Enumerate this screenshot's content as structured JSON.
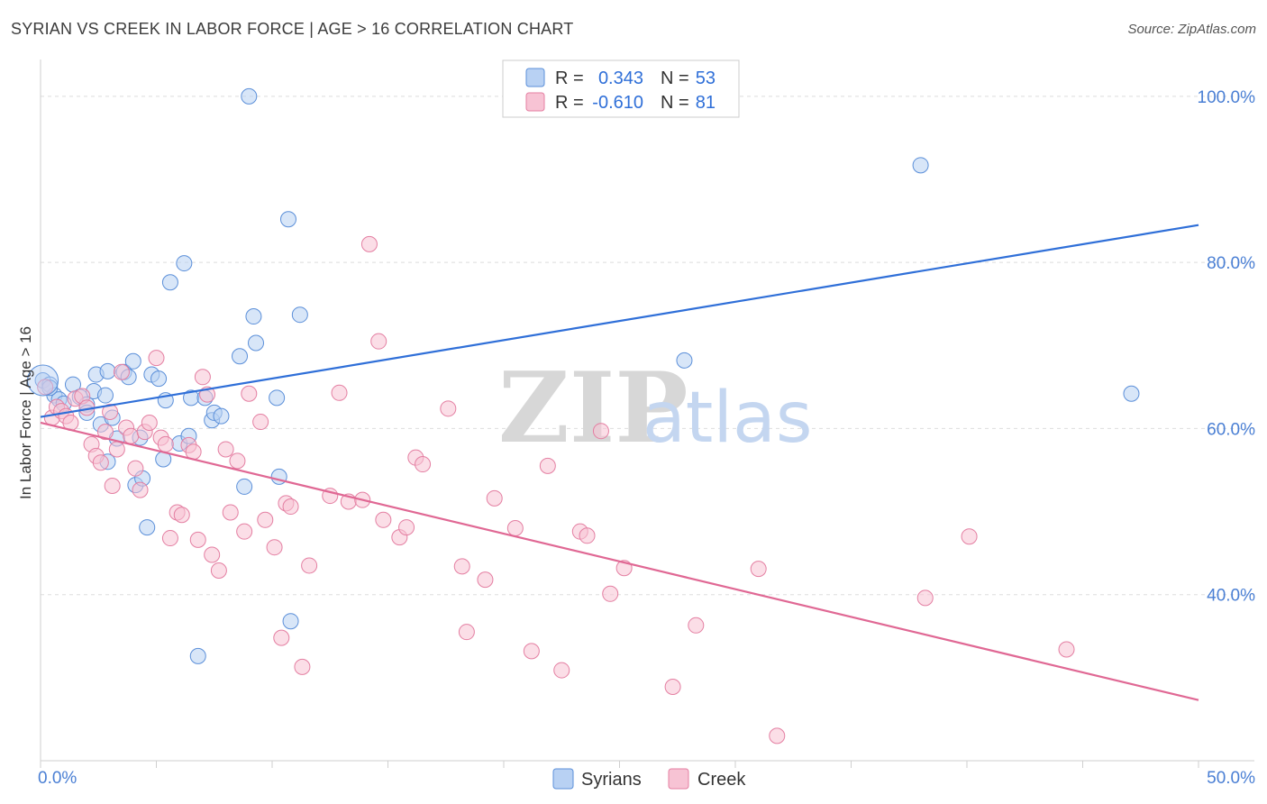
{
  "header": {
    "title": "SYRIAN VS CREEK IN LABOR FORCE | AGE > 16 CORRELATION CHART",
    "source": "Source: ZipAtlas.com"
  },
  "watermark": {
    "zip": "ZIP",
    "atlas": "atlas"
  },
  "colors": {
    "syrians_fill": "#b8d1f3",
    "syrians_stroke": "#5b8fd9",
    "syrians_line": "#2f6fd8",
    "creek_fill": "#f7c3d4",
    "creek_stroke": "#e47fa2",
    "creek_line": "#e06894",
    "grid": "#dedede",
    "axis_label": "#4a7fd4"
  },
  "stats_legend": {
    "rows": [
      {
        "r_label": "R =",
        "r_value": "0.343",
        "n_label": "N =",
        "n_value": "53",
        "series": "syrians"
      },
      {
        "r_label": "R =",
        "r_value": "-0.610",
        "n_label": "N =",
        "n_value": "81",
        "series": "creek"
      }
    ]
  },
  "chart_data": {
    "type": "scatter",
    "ylabel": "In Labor Force | Age > 16",
    "xlim": [
      0,
      50
    ],
    "ylim": [
      20,
      104
    ],
    "x_tick_labels": [
      {
        "value": 0,
        "label": "0.0%"
      },
      {
        "value": 50,
        "label": "50.0%"
      }
    ],
    "y_tick_labels": [
      {
        "value": 100,
        "label": "100.0%"
      },
      {
        "value": 80,
        "label": "80.0%"
      },
      {
        "value": 60,
        "label": "60.0%"
      },
      {
        "value": 40,
        "label": "40.0%"
      }
    ],
    "gridlines_y": [
      100,
      80,
      60,
      40
    ],
    "legend_position": "bottom",
    "series": [
      {
        "name": "Syrians",
        "key": "syrians",
        "trend": {
          "x": [
            0,
            50
          ],
          "y": [
            61.4,
            84.5
          ]
        },
        "points": [
          [
            0.1,
            65.8
          ],
          [
            0.4,
            65.3
          ],
          [
            0.6,
            64.0
          ],
          [
            0.8,
            63.5
          ],
          [
            1.0,
            63.0
          ],
          [
            1.4,
            65.3
          ],
          [
            1.7,
            63.8
          ],
          [
            2.0,
            62.9
          ],
          [
            2.0,
            61.9
          ],
          [
            2.3,
            64.5
          ],
          [
            2.4,
            66.5
          ],
          [
            2.6,
            60.5
          ],
          [
            2.8,
            64.0
          ],
          [
            2.9,
            66.9
          ],
          [
            2.9,
            56.0
          ],
          [
            3.1,
            61.3
          ],
          [
            3.3,
            58.8
          ],
          [
            3.6,
            66.8
          ],
          [
            3.8,
            66.2
          ],
          [
            4.0,
            68.1
          ],
          [
            4.1,
            53.2
          ],
          [
            4.3,
            58.9
          ],
          [
            4.4,
            54.0
          ],
          [
            4.6,
            48.1
          ],
          [
            4.8,
            66.5
          ],
          [
            5.1,
            66.0
          ],
          [
            5.3,
            56.3
          ],
          [
            5.4,
            63.4
          ],
          [
            5.6,
            77.6
          ],
          [
            6.0,
            58.2
          ],
          [
            6.2,
            79.9
          ],
          [
            6.4,
            59.1
          ],
          [
            6.5,
            63.7
          ],
          [
            6.8,
            32.6
          ],
          [
            7.1,
            63.7
          ],
          [
            7.4,
            61.0
          ],
          [
            7.5,
            61.9
          ],
          [
            7.8,
            61.5
          ],
          [
            8.6,
            68.7
          ],
          [
            8.8,
            53.0
          ],
          [
            9.0,
            100.0
          ],
          [
            9.2,
            73.5
          ],
          [
            9.3,
            70.3
          ],
          [
            10.2,
            63.7
          ],
          [
            10.3,
            54.2
          ],
          [
            10.7,
            85.2
          ],
          [
            10.8,
            36.8
          ],
          [
            11.2,
            73.7
          ],
          [
            27.6,
            100.0
          ],
          [
            27.8,
            68.2
          ],
          [
            38.0,
            91.7
          ],
          [
            47.1,
            64.2
          ],
          [
            0.4,
            64.9
          ]
        ]
      },
      {
        "name": "Creek",
        "key": "creek",
        "trend": {
          "x": [
            0,
            50
          ],
          "y": [
            60.7,
            27.3
          ]
        },
        "points": [
          [
            0.2,
            65.0
          ],
          [
            0.5,
            61.3
          ],
          [
            0.7,
            62.6
          ],
          [
            0.9,
            62.1
          ],
          [
            1.1,
            61.5
          ],
          [
            1.3,
            60.7
          ],
          [
            1.5,
            63.6
          ],
          [
            1.8,
            63.9
          ],
          [
            2.0,
            62.5
          ],
          [
            2.2,
            58.1
          ],
          [
            2.4,
            56.7
          ],
          [
            2.6,
            55.9
          ],
          [
            2.8,
            59.6
          ],
          [
            3.0,
            62.0
          ],
          [
            3.1,
            53.1
          ],
          [
            3.3,
            57.5
          ],
          [
            3.5,
            66.8
          ],
          [
            3.7,
            60.1
          ],
          [
            3.9,
            59.1
          ],
          [
            4.1,
            55.2
          ],
          [
            4.3,
            52.6
          ],
          [
            4.5,
            59.6
          ],
          [
            4.7,
            60.7
          ],
          [
            5.0,
            68.5
          ],
          [
            5.2,
            58.9
          ],
          [
            5.4,
            58.1
          ],
          [
            5.6,
            46.8
          ],
          [
            5.9,
            49.9
          ],
          [
            6.1,
            49.6
          ],
          [
            6.4,
            58.0
          ],
          [
            6.6,
            57.2
          ],
          [
            6.8,
            46.6
          ],
          [
            7.0,
            66.2
          ],
          [
            7.2,
            64.1
          ],
          [
            7.4,
            44.8
          ],
          [
            7.7,
            42.9
          ],
          [
            8.0,
            57.5
          ],
          [
            8.2,
            49.9
          ],
          [
            8.5,
            56.1
          ],
          [
            8.8,
            47.6
          ],
          [
            9.0,
            64.2
          ],
          [
            9.5,
            60.8
          ],
          [
            9.7,
            49.0
          ],
          [
            10.1,
            45.7
          ],
          [
            10.4,
            34.8
          ],
          [
            10.6,
            51.0
          ],
          [
            10.8,
            50.6
          ],
          [
            11.3,
            31.3
          ],
          [
            11.6,
            43.5
          ],
          [
            12.5,
            51.9
          ],
          [
            12.9,
            64.3
          ],
          [
            13.3,
            51.2
          ],
          [
            13.9,
            51.4
          ],
          [
            14.2,
            82.2
          ],
          [
            14.6,
            70.5
          ],
          [
            14.8,
            49.0
          ],
          [
            15.5,
            46.9
          ],
          [
            15.8,
            48.1
          ],
          [
            16.2,
            56.5
          ],
          [
            16.5,
            55.7
          ],
          [
            17.6,
            62.4
          ],
          [
            18.2,
            43.4
          ],
          [
            18.4,
            35.5
          ],
          [
            19.2,
            41.8
          ],
          [
            19.6,
            51.6
          ],
          [
            20.5,
            48.0
          ],
          [
            21.2,
            33.2
          ],
          [
            21.9,
            55.5
          ],
          [
            22.5,
            30.9
          ],
          [
            23.3,
            47.6
          ],
          [
            23.6,
            47.1
          ],
          [
            24.2,
            59.7
          ],
          [
            24.6,
            40.1
          ],
          [
            25.2,
            43.2
          ],
          [
            27.3,
            28.9
          ],
          [
            28.3,
            36.3
          ],
          [
            31.0,
            43.1
          ],
          [
            31.8,
            23.0
          ],
          [
            38.2,
            39.6
          ],
          [
            40.1,
            47.0
          ],
          [
            44.3,
            33.4
          ]
        ]
      }
    ]
  },
  "bottom_legend": {
    "items": [
      {
        "label": "Syrians",
        "series": "syrians"
      },
      {
        "label": "Creek",
        "series": "creek"
      }
    ]
  }
}
